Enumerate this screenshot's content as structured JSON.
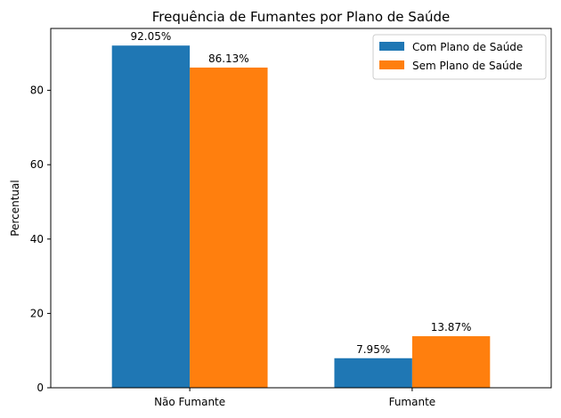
{
  "chart_data": {
    "type": "bar",
    "title": "Frequência de Fumantes por Plano de Saúde",
    "xlabel": "",
    "ylabel": "Percentual",
    "categories": [
      "Não Fumante",
      "Fumante"
    ],
    "series": [
      {
        "name": "Com Plano de Saúde",
        "values": [
          92.05,
          7.95
        ],
        "labels": [
          "92.05%",
          "7.95%"
        ],
        "color": "#1f77b4"
      },
      {
        "name": "Sem Plano de Saúde",
        "values": [
          86.13,
          13.87
        ],
        "labels": [
          "86.13%",
          "13.87%"
        ],
        "color": "#ff7f0e"
      }
    ],
    "ylim": [
      0,
      96.65
    ],
    "yticks": [
      0,
      20,
      40,
      60,
      80
    ],
    "grid": false,
    "legend": "top-right"
  }
}
